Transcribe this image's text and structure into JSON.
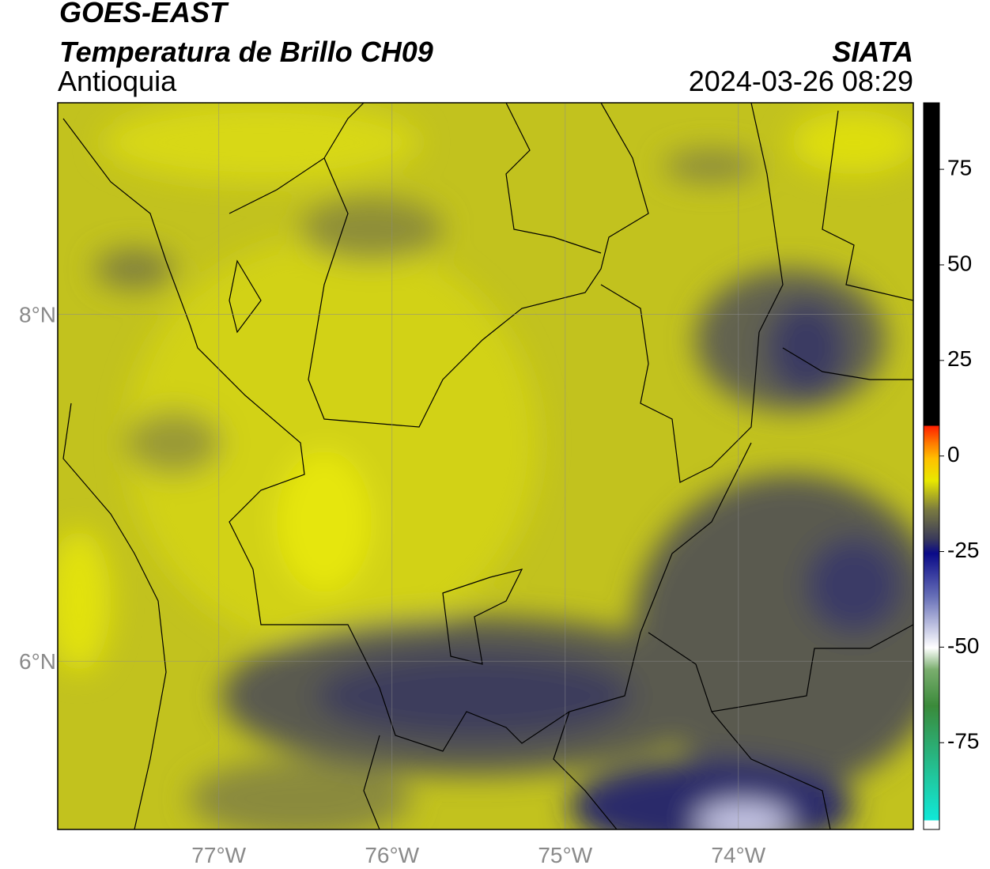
{
  "header": {
    "title": "GOES-EAST",
    "subtitle": "Temperatura de Brillo CH09",
    "region": "Antioquia",
    "source": "SIATA",
    "datetime": "2024-03-26 08:29"
  },
  "map": {
    "xlim": [
      -77.93,
      -72.99
    ],
    "ylim": [
      5.03,
      9.22
    ],
    "xticks": [
      {
        "value": -77,
        "label": "77°W"
      },
      {
        "value": -76,
        "label": "76°W"
      },
      {
        "value": -75,
        "label": "75°W"
      },
      {
        "value": -74,
        "label": "74°W"
      }
    ],
    "yticks": [
      {
        "value": 8,
        "label": "8°N"
      },
      {
        "value": 6,
        "label": "6°N"
      }
    ]
  },
  "colorbar": {
    "lim": [
      -97.7,
      92.4
    ],
    "ticks": [
      75,
      50,
      25,
      0,
      -25,
      -50,
      -75
    ]
  }
}
